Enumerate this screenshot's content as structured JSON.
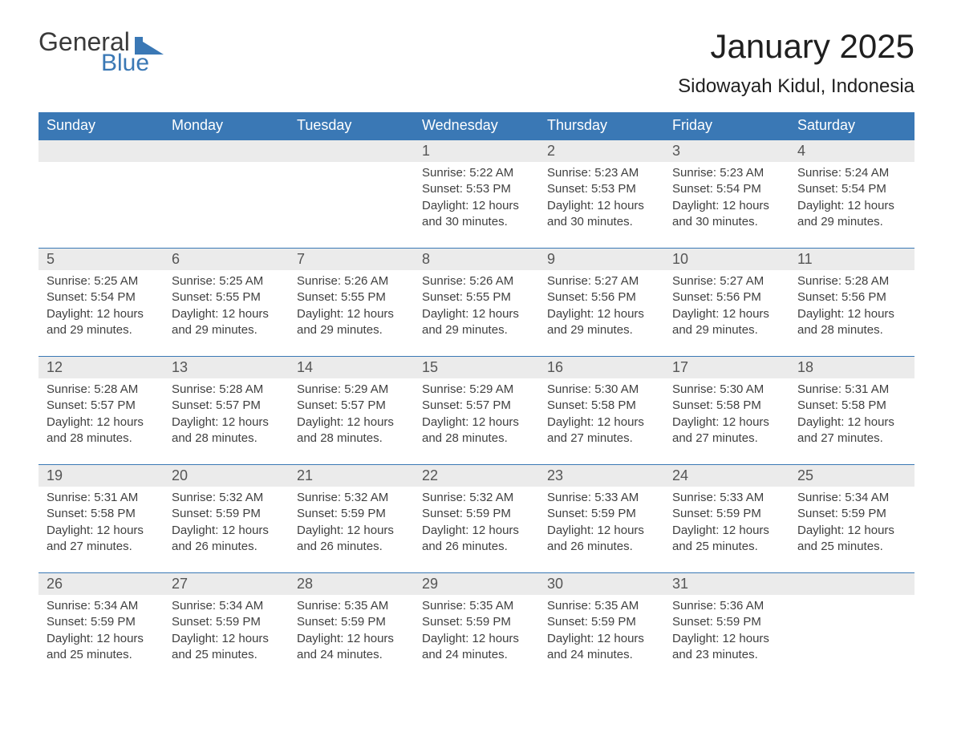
{
  "colors": {
    "brand_blue": "#3a78b5",
    "header_grey": "#ebebeb",
    "background": "#ffffff",
    "text": "#2b2b2b"
  },
  "logo": {
    "word1": "General",
    "word2": "Blue"
  },
  "title": "January 2025",
  "location": "Sidowayah Kidul, Indonesia",
  "weekdays": [
    "Sunday",
    "Monday",
    "Tuesday",
    "Wednesday",
    "Thursday",
    "Friday",
    "Saturday"
  ],
  "weeks": [
    {
      "days": [
        {
          "num": "",
          "sunrise": "",
          "sunset": "",
          "daylight1": "",
          "daylight2": ""
        },
        {
          "num": "",
          "sunrise": "",
          "sunset": "",
          "daylight1": "",
          "daylight2": ""
        },
        {
          "num": "",
          "sunrise": "",
          "sunset": "",
          "daylight1": "",
          "daylight2": ""
        },
        {
          "num": "1",
          "sunrise": "Sunrise: 5:22 AM",
          "sunset": "Sunset: 5:53 PM",
          "daylight1": "Daylight: 12 hours",
          "daylight2": "and 30 minutes."
        },
        {
          "num": "2",
          "sunrise": "Sunrise: 5:23 AM",
          "sunset": "Sunset: 5:53 PM",
          "daylight1": "Daylight: 12 hours",
          "daylight2": "and 30 minutes."
        },
        {
          "num": "3",
          "sunrise": "Sunrise: 5:23 AM",
          "sunset": "Sunset: 5:54 PM",
          "daylight1": "Daylight: 12 hours",
          "daylight2": "and 30 minutes."
        },
        {
          "num": "4",
          "sunrise": "Sunrise: 5:24 AM",
          "sunset": "Sunset: 5:54 PM",
          "daylight1": "Daylight: 12 hours",
          "daylight2": "and 29 minutes."
        }
      ]
    },
    {
      "days": [
        {
          "num": "5",
          "sunrise": "Sunrise: 5:25 AM",
          "sunset": "Sunset: 5:54 PM",
          "daylight1": "Daylight: 12 hours",
          "daylight2": "and 29 minutes."
        },
        {
          "num": "6",
          "sunrise": "Sunrise: 5:25 AM",
          "sunset": "Sunset: 5:55 PM",
          "daylight1": "Daylight: 12 hours",
          "daylight2": "and 29 minutes."
        },
        {
          "num": "7",
          "sunrise": "Sunrise: 5:26 AM",
          "sunset": "Sunset: 5:55 PM",
          "daylight1": "Daylight: 12 hours",
          "daylight2": "and 29 minutes."
        },
        {
          "num": "8",
          "sunrise": "Sunrise: 5:26 AM",
          "sunset": "Sunset: 5:55 PM",
          "daylight1": "Daylight: 12 hours",
          "daylight2": "and 29 minutes."
        },
        {
          "num": "9",
          "sunrise": "Sunrise: 5:27 AM",
          "sunset": "Sunset: 5:56 PM",
          "daylight1": "Daylight: 12 hours",
          "daylight2": "and 29 minutes."
        },
        {
          "num": "10",
          "sunrise": "Sunrise: 5:27 AM",
          "sunset": "Sunset: 5:56 PM",
          "daylight1": "Daylight: 12 hours",
          "daylight2": "and 29 minutes."
        },
        {
          "num": "11",
          "sunrise": "Sunrise: 5:28 AM",
          "sunset": "Sunset: 5:56 PM",
          "daylight1": "Daylight: 12 hours",
          "daylight2": "and 28 minutes."
        }
      ]
    },
    {
      "days": [
        {
          "num": "12",
          "sunrise": "Sunrise: 5:28 AM",
          "sunset": "Sunset: 5:57 PM",
          "daylight1": "Daylight: 12 hours",
          "daylight2": "and 28 minutes."
        },
        {
          "num": "13",
          "sunrise": "Sunrise: 5:28 AM",
          "sunset": "Sunset: 5:57 PM",
          "daylight1": "Daylight: 12 hours",
          "daylight2": "and 28 minutes."
        },
        {
          "num": "14",
          "sunrise": "Sunrise: 5:29 AM",
          "sunset": "Sunset: 5:57 PM",
          "daylight1": "Daylight: 12 hours",
          "daylight2": "and 28 minutes."
        },
        {
          "num": "15",
          "sunrise": "Sunrise: 5:29 AM",
          "sunset": "Sunset: 5:57 PM",
          "daylight1": "Daylight: 12 hours",
          "daylight2": "and 28 minutes."
        },
        {
          "num": "16",
          "sunrise": "Sunrise: 5:30 AM",
          "sunset": "Sunset: 5:58 PM",
          "daylight1": "Daylight: 12 hours",
          "daylight2": "and 27 minutes."
        },
        {
          "num": "17",
          "sunrise": "Sunrise: 5:30 AM",
          "sunset": "Sunset: 5:58 PM",
          "daylight1": "Daylight: 12 hours",
          "daylight2": "and 27 minutes."
        },
        {
          "num": "18",
          "sunrise": "Sunrise: 5:31 AM",
          "sunset": "Sunset: 5:58 PM",
          "daylight1": "Daylight: 12 hours",
          "daylight2": "and 27 minutes."
        }
      ]
    },
    {
      "days": [
        {
          "num": "19",
          "sunrise": "Sunrise: 5:31 AM",
          "sunset": "Sunset: 5:58 PM",
          "daylight1": "Daylight: 12 hours",
          "daylight2": "and 27 minutes."
        },
        {
          "num": "20",
          "sunrise": "Sunrise: 5:32 AM",
          "sunset": "Sunset: 5:59 PM",
          "daylight1": "Daylight: 12 hours",
          "daylight2": "and 26 minutes."
        },
        {
          "num": "21",
          "sunrise": "Sunrise: 5:32 AM",
          "sunset": "Sunset: 5:59 PM",
          "daylight1": "Daylight: 12 hours",
          "daylight2": "and 26 minutes."
        },
        {
          "num": "22",
          "sunrise": "Sunrise: 5:32 AM",
          "sunset": "Sunset: 5:59 PM",
          "daylight1": "Daylight: 12 hours",
          "daylight2": "and 26 minutes."
        },
        {
          "num": "23",
          "sunrise": "Sunrise: 5:33 AM",
          "sunset": "Sunset: 5:59 PM",
          "daylight1": "Daylight: 12 hours",
          "daylight2": "and 26 minutes."
        },
        {
          "num": "24",
          "sunrise": "Sunrise: 5:33 AM",
          "sunset": "Sunset: 5:59 PM",
          "daylight1": "Daylight: 12 hours",
          "daylight2": "and 25 minutes."
        },
        {
          "num": "25",
          "sunrise": "Sunrise: 5:34 AM",
          "sunset": "Sunset: 5:59 PM",
          "daylight1": "Daylight: 12 hours",
          "daylight2": "and 25 minutes."
        }
      ]
    },
    {
      "days": [
        {
          "num": "26",
          "sunrise": "Sunrise: 5:34 AM",
          "sunset": "Sunset: 5:59 PM",
          "daylight1": "Daylight: 12 hours",
          "daylight2": "and 25 minutes."
        },
        {
          "num": "27",
          "sunrise": "Sunrise: 5:34 AM",
          "sunset": "Sunset: 5:59 PM",
          "daylight1": "Daylight: 12 hours",
          "daylight2": "and 25 minutes."
        },
        {
          "num": "28",
          "sunrise": "Sunrise: 5:35 AM",
          "sunset": "Sunset: 5:59 PM",
          "daylight1": "Daylight: 12 hours",
          "daylight2": "and 24 minutes."
        },
        {
          "num": "29",
          "sunrise": "Sunrise: 5:35 AM",
          "sunset": "Sunset: 5:59 PM",
          "daylight1": "Daylight: 12 hours",
          "daylight2": "and 24 minutes."
        },
        {
          "num": "30",
          "sunrise": "Sunrise: 5:35 AM",
          "sunset": "Sunset: 5:59 PM",
          "daylight1": "Daylight: 12 hours",
          "daylight2": "and 24 minutes."
        },
        {
          "num": "31",
          "sunrise": "Sunrise: 5:36 AM",
          "sunset": "Sunset: 5:59 PM",
          "daylight1": "Daylight: 12 hours",
          "daylight2": "and 23 minutes."
        },
        {
          "num": "",
          "sunrise": "",
          "sunset": "",
          "daylight1": "",
          "daylight2": ""
        }
      ]
    }
  ]
}
